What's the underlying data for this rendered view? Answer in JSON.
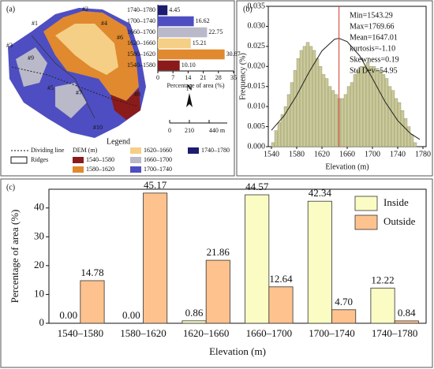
{
  "panels": [
    "(a)",
    "(b)",
    "(c)"
  ],
  "map": {
    "labels": [
      "#1",
      "#2",
      "#3",
      "#4",
      "#5",
      "#6",
      "#7",
      "#8",
      "#9",
      "#10"
    ],
    "north": "N",
    "scale": [
      "0",
      "210",
      "440 m"
    ],
    "legend": {
      "title": "Legend",
      "dividing": "Dividing line",
      "ridges": "Ridges",
      "dem": "DEM (m)",
      "classes": [
        {
          "name": "1540–1580",
          "color": "#8b1a1a"
        },
        {
          "name": "1580–1620",
          "color": "#e0892e"
        },
        {
          "name": "1620–1660",
          "color": "#f5cf86"
        },
        {
          "name": "1660–1700",
          "color": "#b9b9c9"
        },
        {
          "name": "1700–1740",
          "color": "#4e4ec2"
        },
        {
          "name": "1740–1780",
          "color": "#1c1c70"
        }
      ]
    }
  },
  "chart_data": [
    {
      "type": "barh",
      "categories": [
        "1540–1580",
        "1580–1620",
        "1620–1660",
        "1660–1700",
        "1700–1740",
        "1740–1780"
      ],
      "values": [
        10.1,
        30.87,
        15.21,
        22.75,
        16.62,
        4.45
      ],
      "value_labels": [
        "10.10",
        "30.87",
        "15.21",
        "22.75",
        "16.62",
        "4.45"
      ],
      "colors": [
        "#8b1a1a",
        "#e0892e",
        "#f5cf86",
        "#b9b9c9",
        "#4e4ec2",
        "#1c1c70"
      ],
      "xlim": [
        0,
        35
      ],
      "xticks": [
        0,
        7,
        14,
        21,
        28,
        35
      ],
      "xlabel": "Percentage of area (%)"
    },
    {
      "type": "histogram",
      "xlabel": "Elevation (m)",
      "ylabel": "Frequency (%)",
      "bins": [
        1540,
        1545,
        1550,
        1555,
        1560,
        1565,
        1570,
        1575,
        1580,
        1585,
        1590,
        1595,
        1600,
        1605,
        1610,
        1615,
        1620,
        1625,
        1630,
        1635,
        1640,
        1645,
        1650,
        1655,
        1660,
        1665,
        1670,
        1675,
        1680,
        1685,
        1690,
        1695,
        1700,
        1705,
        1710,
        1715,
        1720,
        1725,
        1730,
        1735,
        1740,
        1745,
        1750,
        1755,
        1760,
        1765,
        1770
      ],
      "values": [
        0.001,
        0.004,
        0.006,
        0.008,
        0.01,
        0.013,
        0.016,
        0.019,
        0.022,
        0.024,
        0.025,
        0.026,
        0.025,
        0.024,
        0.022,
        0.02,
        0.018,
        0.017,
        0.015,
        0.014,
        0.013,
        0.012,
        0.012,
        0.013,
        0.015,
        0.016,
        0.018,
        0.019,
        0.02,
        0.02,
        0.021,
        0.02,
        0.02,
        0.019,
        0.019,
        0.018,
        0.017,
        0.015,
        0.014,
        0.012,
        0.011,
        0.009,
        0.007,
        0.005,
        0.003,
        0.001
      ],
      "color": "#c9c99a",
      "curve": {
        "x": [
          1540,
          1560,
          1580,
          1600,
          1620,
          1640,
          1647,
          1660,
          1680,
          1700,
          1720,
          1740,
          1760,
          1775
        ],
        "values": [
          0.0041,
          0.0077,
          0.0128,
          0.0187,
          0.0239,
          0.0268,
          0.027,
          0.0262,
          0.0226,
          0.017,
          0.0112,
          0.0065,
          0.0033,
          0.0018
        ]
      },
      "mean": 1647.01,
      "stats": [
        "Min=1543.29",
        "Max=1769.66",
        "Mean=1647.01",
        "kurtosis=-1.10",
        "Skewness=0.19",
        "Std Dev=54.95"
      ],
      "xlim": [
        1535,
        1785
      ],
      "xticks": [
        1540,
        1580,
        1620,
        1660,
        1700,
        1740,
        1780
      ],
      "ylim": [
        0,
        0.035
      ],
      "yticks": [
        {
          "value": 0,
          "label": "0.000"
        },
        {
          "value": 0.005,
          "label": "0.005"
        },
        {
          "value": 0.01,
          "label": "0.010"
        },
        {
          "value": 0.015,
          "label": "0.015"
        },
        {
          "value": 0.02,
          "label": "0.020"
        },
        {
          "value": 0.025,
          "label": "0.025"
        },
        {
          "value": 0.03,
          "label": "0.030"
        },
        {
          "value": 0.035,
          "label": "0.035"
        }
      ]
    },
    {
      "type": "groupedbar",
      "xlabel": "Elevation (m)",
      "ylabel": "Percentage of area (%)",
      "categories": [
        "1540–1580",
        "1580–1620",
        "1620–1660",
        "1660–1700",
        "1700–1740",
        "1740–1780"
      ],
      "series": [
        {
          "name": "Inside",
          "color": "#fbfcc4",
          "values": [
            0.0,
            0.0,
            0.86,
            44.57,
            42.34,
            12.22
          ],
          "value_labels": [
            "0.00",
            "0.00",
            "0.86",
            "44.57",
            "42.34",
            "12.22"
          ]
        },
        {
          "name": "Outside",
          "color": "#fdc28e",
          "values": [
            14.78,
            45.17,
            21.86,
            12.64,
            4.7,
            0.84
          ],
          "value_labels": [
            "14.78",
            "45.17",
            "21.86",
            "12.64",
            "4.70",
            "0.84"
          ]
        }
      ],
      "ylim": [
        0,
        46.5
      ],
      "yticks": [
        0,
        10,
        20,
        30,
        40
      ],
      "legend": "top-right"
    }
  ]
}
